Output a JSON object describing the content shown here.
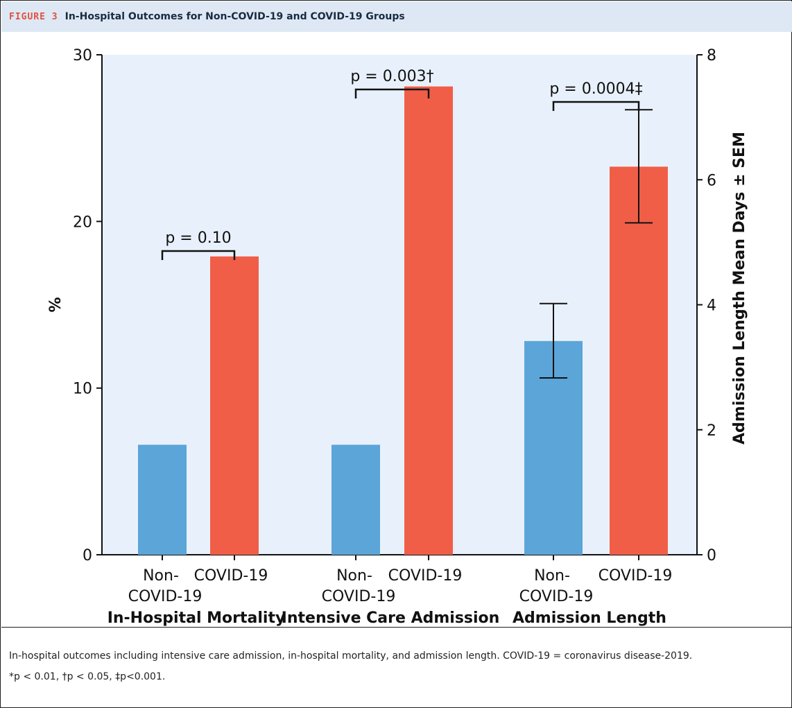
{
  "figure": {
    "label": "FIGURE 3",
    "title": "In-Hospital Outcomes for Non-COVID-19 and COVID-19 Groups"
  },
  "caption": {
    "line1": "In-hospital outcomes including intensive care admission, in-hospital mortality, and admission length. COVID-19 = coronavirus disease-2019.",
    "line2": "*p < 0.01, †p < 0.05, ‡p<0.001."
  },
  "colors": {
    "non_covid": "#5ba5d8",
    "covid": "#f05e48",
    "plot_bg": "#e8f1fb"
  },
  "chart_data": {
    "type": "bar",
    "ylabel_left": "%",
    "ylabel_right": "Admission Length Mean Days ± SEM",
    "ylim_left": [
      0,
      30
    ],
    "yticks_left": [
      0,
      10,
      20,
      30
    ],
    "ylim_right": [
      0,
      8
    ],
    "yticks_right": [
      0,
      2,
      4,
      6,
      8
    ],
    "groups": [
      {
        "name": "In-Hospital Mortality",
        "axis": "left",
        "bars": [
          {
            "label_line1": "Non-",
            "label_line2": "COVID-19",
            "value": 6.6,
            "series": "non_covid"
          },
          {
            "label_line1": "COVID-19",
            "label_line2": "",
            "value": 17.9,
            "series": "covid"
          }
        ],
        "p_label": "p = 0.10"
      },
      {
        "name": "Intensive Care Admission",
        "axis": "left",
        "bars": [
          {
            "label_line1": "Non-",
            "label_line2": "COVID-19",
            "value": 6.6,
            "series": "non_covid"
          },
          {
            "label_line1": "COVID-19",
            "label_line2": "",
            "value": 28.1,
            "series": "covid"
          }
        ],
        "p_label": "p = 0.003†"
      },
      {
        "name": "Admission Length",
        "axis": "right",
        "bars": [
          {
            "label_line1": "Non-",
            "label_line2": "COVID-19",
            "value": 3.42,
            "err_low": 2.83,
            "err_high": 4.02,
            "series": "non_covid"
          },
          {
            "label_line1": "COVID-19",
            "label_line2": "",
            "value": 6.21,
            "err_low": 5.31,
            "err_high": 7.12,
            "series": "covid"
          }
        ],
        "p_label": "p = 0.0004‡"
      }
    ]
  }
}
